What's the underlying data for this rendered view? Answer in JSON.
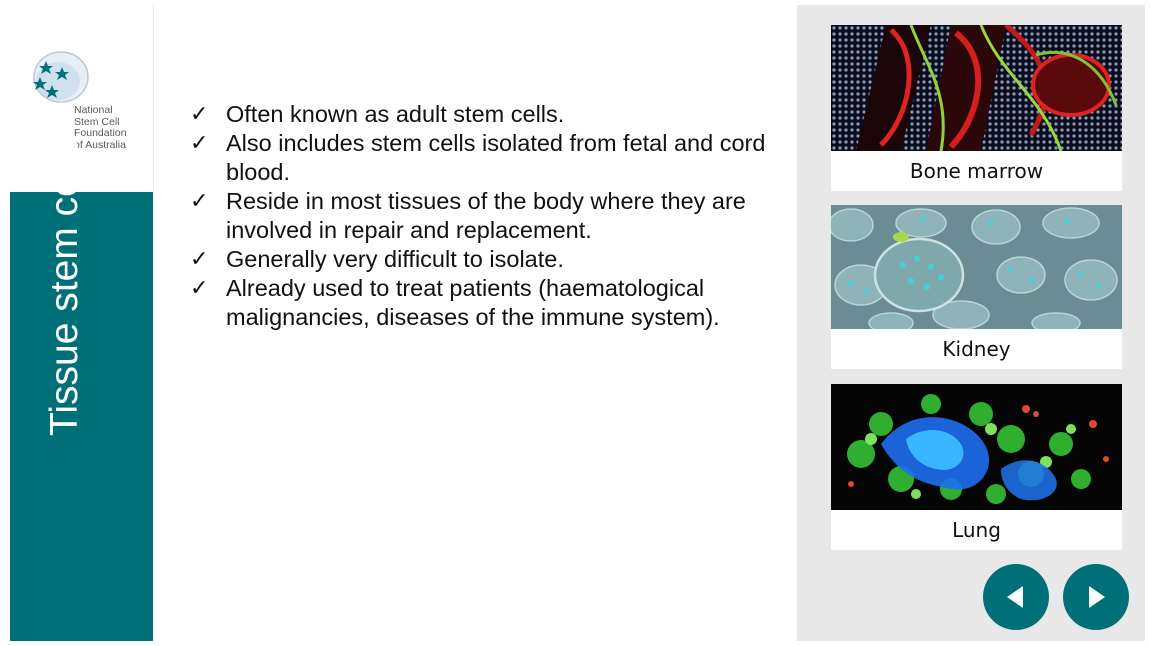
{
  "logo": {
    "lines": [
      "National",
      "Stem Cell",
      "Foundation",
      "of Australia"
    ]
  },
  "slide": {
    "title": "Tissue stem cells",
    "bullets": [
      "Often known as adult stem cells.",
      "Also includes stem cells isolated from fetal and cord blood.",
      "Reside in most tissues of the body where they are involved in repair and replacement.",
      "Generally very difficult to isolate.",
      "Already used to treat patients (haematological malignancies, diseases of the immune system)."
    ],
    "check_glyph": "✓"
  },
  "gallery": {
    "items": [
      {
        "label": "Bone marrow",
        "icon": "bone-marrow-micrograph"
      },
      {
        "label": "Kidney",
        "icon": "kidney-micrograph"
      },
      {
        "label": "Lung",
        "icon": "lung-micrograph"
      }
    ]
  },
  "navigation": {
    "prev_icon": "triangle-left-icon",
    "next_icon": "triangle-right-icon"
  },
  "colors": {
    "brand_teal": "#007078",
    "panel_gray": "#e8e8e8"
  }
}
